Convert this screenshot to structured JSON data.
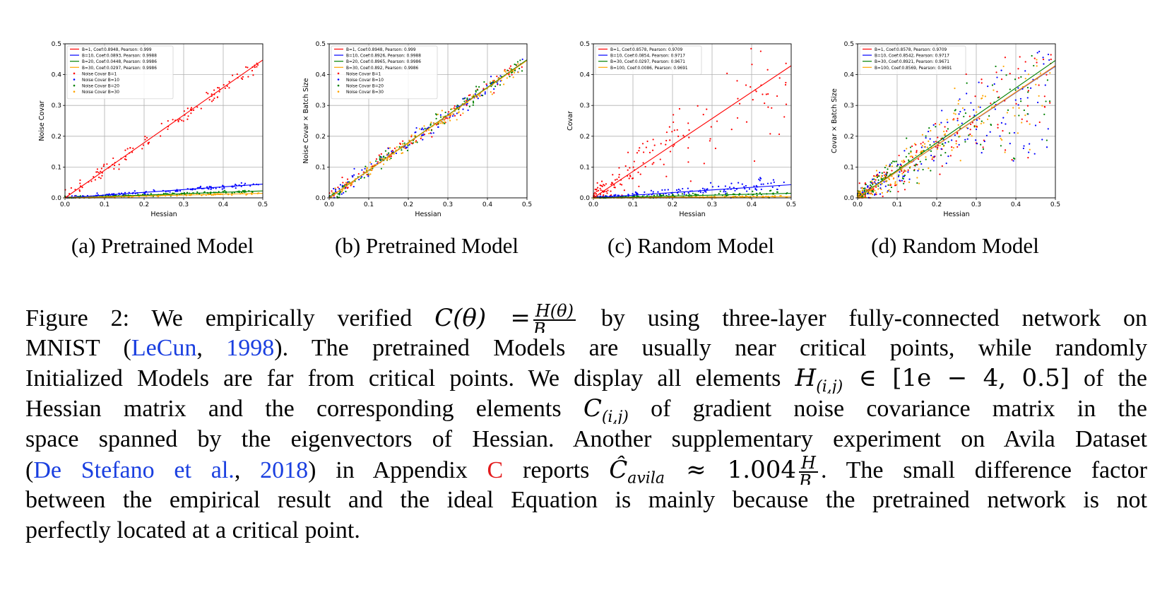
{
  "panels": [
    {
      "caption": "(a) Pretrained Model",
      "xlabel": "Hessian",
      "ylabel": "Noise Covar",
      "legend_lines": [
        {
          "label": "B=1, Coef:0.8948, Pearson: 0.999",
          "color": "#ff0000"
        },
        {
          "label": "B=10, Coef:0.0893, Pearson: 0.9988",
          "color": "#0000ff"
        },
        {
          "label": "B=20, Coef:0.0448, Pearson: 0.9986",
          "color": "#008000"
        },
        {
          "label": "B=30, Coef:0.0297, Pearson: 0.9986",
          "color": "#ffa500"
        }
      ],
      "legend_points": [
        {
          "label": "Noise Covar B=1",
          "color": "#ff0000"
        },
        {
          "label": "Noise Covar B=10",
          "color": "#0000ff"
        },
        {
          "label": "Noise Covar B=20",
          "color": "#008000"
        },
        {
          "label": "Noise Covar B=30",
          "color": "#ffa500"
        }
      ]
    },
    {
      "caption": "(b) Pretrained Model",
      "xlabel": "Hessian",
      "ylabel": "Noise Covar × Batch Size",
      "legend_lines": [
        {
          "label": "B=1, Coef:0.8948, Pearson: 0.999",
          "color": "#ff0000"
        },
        {
          "label": "B=10, Coef:0.8926, Pearson: 0.9988",
          "color": "#0000ff"
        },
        {
          "label": "B=20, Coef:0.8965, Pearson: 0.9986",
          "color": "#008000"
        },
        {
          "label": "B=30, Coef:0.892, Pearson: 0.9986",
          "color": "#ffa500"
        }
      ],
      "legend_points": [
        {
          "label": "Noise Covar B=1",
          "color": "#ff0000"
        },
        {
          "label": "Noise Covar B=10",
          "color": "#0000ff"
        },
        {
          "label": "Noise Covar B=20",
          "color": "#008000"
        },
        {
          "label": "Noise Covar B=30",
          "color": "#ffa500"
        }
      ]
    },
    {
      "caption": "(c) Random Model",
      "xlabel": "Hessian",
      "ylabel": "Covar",
      "legend_lines": [
        {
          "label": "B=1, Coef:0.8578, Pearson: 0.9709",
          "color": "#ff0000"
        },
        {
          "label": "B=10, Coef:0.0854, Pearson: 0.9717",
          "color": "#0000ff"
        },
        {
          "label": "B=30, Coef:0.0297, Pearson: 0.9671",
          "color": "#008000"
        },
        {
          "label": "B=100, Coef:0.0086, Pearson: 0.9691",
          "color": "#ffa500"
        }
      ],
      "legend_points": []
    },
    {
      "caption": "(d) Random Model",
      "xlabel": "Hessian",
      "ylabel": "Covar × Batch Size",
      "legend_lines": [
        {
          "label": "B=1, Coef:0.8578, Pearson: 0.9709",
          "color": "#ff0000"
        },
        {
          "label": "B=10, Coef:0.8542, Pearson: 0.9717",
          "color": "#0000ff"
        },
        {
          "label": "B=30, Coef:0.8921, Pearson: 0.9671",
          "color": "#008000"
        },
        {
          "label": "B=100, Coef:0.8569, Pearson: 0.9691",
          "color": "#ffa500"
        }
      ],
      "legend_points": []
    }
  ],
  "chart_data": [
    {
      "type": "scatter",
      "xlabel": "Hessian",
      "ylabel": "Noise Covar",
      "xlim": [
        0,
        0.5
      ],
      "ylim": [
        0,
        0.5
      ],
      "xticks": [
        "0.0",
        "0.1",
        "0.2",
        "0.3",
        "0.4",
        "0.5"
      ],
      "yticks": [
        "0.0",
        "0.1",
        "0.2",
        "0.3",
        "0.4",
        "0.5"
      ],
      "grid": true,
      "legend": "top-left",
      "series": [
        {
          "name": "B=1, Coef:0.8948, Pearson: 0.999",
          "slope": 0.8948,
          "color": "#ff0000",
          "noise": 0.012
        },
        {
          "name": "B=10, Coef:0.0893, Pearson: 0.9988",
          "slope": 0.0893,
          "color": "#0000ff",
          "noise": 0.003
        },
        {
          "name": "B=20, Coef:0.0448, Pearson: 0.9986",
          "slope": 0.0448,
          "color": "#008000",
          "noise": 0.002
        },
        {
          "name": "B=30, Coef:0.0297, Pearson: 0.9986",
          "slope": 0.0297,
          "color": "#ffa500",
          "noise": 0.0015
        }
      ]
    },
    {
      "type": "scatter",
      "xlabel": "Hessian",
      "ylabel": "Noise Covar × Batch Size",
      "xlim": [
        0,
        0.5
      ],
      "ylim": [
        0,
        0.5
      ],
      "xticks": [
        "0.0",
        "0.1",
        "0.2",
        "0.3",
        "0.4",
        "0.5"
      ],
      "yticks": [
        "0.0",
        "0.1",
        "0.2",
        "0.3",
        "0.4",
        "0.5"
      ],
      "grid": true,
      "legend": "top-left",
      "series": [
        {
          "name": "B=1, Coef:0.8948, Pearson: 0.999",
          "slope": 0.8948,
          "color": "#ff0000",
          "noise": 0.012
        },
        {
          "name": "B=10, Coef:0.8926, Pearson: 0.9988",
          "slope": 0.8926,
          "color": "#0000ff",
          "noise": 0.012
        },
        {
          "name": "B=20, Coef:0.8965, Pearson: 0.9986",
          "slope": 0.8965,
          "color": "#008000",
          "noise": 0.012
        },
        {
          "name": "B=30, Coef:0.892, Pearson: 0.9986",
          "slope": 0.892,
          "color": "#ffa500",
          "noise": 0.012
        }
      ]
    },
    {
      "type": "scatter",
      "xlabel": "Hessian",
      "ylabel": "Covar",
      "xlim": [
        0,
        0.5
      ],
      "ylim": [
        0,
        0.5
      ],
      "xticks": [
        "0.0",
        "0.1",
        "0.2",
        "0.3",
        "0.4",
        "0.5"
      ],
      "yticks": [
        "0.0",
        "0.1",
        "0.2",
        "0.3",
        "0.4",
        "0.5"
      ],
      "grid": true,
      "legend": "top-left",
      "series": [
        {
          "name": "B=1, Coef:0.8578, Pearson: 0.9709",
          "slope": 0.8578,
          "color": "#ff0000",
          "noise": 0.05
        },
        {
          "name": "B=10, Coef:0.0854, Pearson: 0.9717",
          "slope": 0.0854,
          "color": "#0000ff",
          "noise": 0.006
        },
        {
          "name": "B=30, Coef:0.0297, Pearson: 0.9671",
          "slope": 0.0297,
          "color": "#008000",
          "noise": 0.003
        },
        {
          "name": "B=100, Coef:0.0086, Pearson: 0.9691",
          "slope": 0.0086,
          "color": "#ffa500",
          "noise": 0.001
        }
      ]
    },
    {
      "type": "scatter",
      "xlabel": "Hessian",
      "ylabel": "Covar × Batch Size",
      "xlim": [
        0,
        0.5
      ],
      "ylim": [
        0,
        0.5
      ],
      "xticks": [
        "0.0",
        "0.1",
        "0.2",
        "0.3",
        "0.4",
        "0.5"
      ],
      "yticks": [
        "0.0",
        "0.1",
        "0.2",
        "0.3",
        "0.4",
        "0.5"
      ],
      "grid": true,
      "legend": "top-left",
      "series": [
        {
          "name": "B=1, Coef:0.8578, Pearson: 0.9709",
          "slope": 0.8578,
          "color": "#ff0000",
          "noise": 0.04
        },
        {
          "name": "B=10, Coef:0.8542, Pearson: 0.9717",
          "slope": 0.8542,
          "color": "#0000ff",
          "noise": 0.04
        },
        {
          "name": "B=30, Coef:0.8921, Pearson: 0.9671",
          "slope": 0.8921,
          "color": "#008000",
          "noise": 0.04
        },
        {
          "name": "B=100, Coef:0.8569, Pearson: 0.9691",
          "slope": 0.8569,
          "color": "#ffa500",
          "noise": 0.04
        }
      ]
    }
  ],
  "caption": {
    "l1_pre": "Figure 2: We empirically verified ",
    "l1_math_lhs": "C(θ) =",
    "l1_frac_num": "H(θ)",
    "l1_frac_den": "B",
    "l1_post": " by using three-layer fully-connected network on",
    "l2_pre": "MNIST (",
    "l2_cite1": "LeCun",
    "l2_comma": ", ",
    "l2_cite2": "1998",
    "l2_post": ").  The pretrained Models are usually near critical points, while randomly",
    "l3_pre": "Initialized Models are far from critical points. We display all elements ",
    "l3_math_H": "H",
    "l3_math_sub": "(i,j)",
    "l3_math_in": " ∈ [1e − 4, 0.5]",
    "l3_post": " of the",
    "l4_pre": "Hessian matrix and the corresponding elements ",
    "l4_math_C": "C",
    "l4_math_sub": "(i,j)",
    "l4_post": " of gradient noise covariance matrix in the",
    "l5": "space spanned by the eigenvectors of Hessian. Another supplementary experiment on Avila Dataset",
    "l6_open": "(",
    "l6_cite1": "De Stefano et al.",
    "l6_comma": ", ",
    "l6_cite2": "2018",
    "l6_mid": ") in Appendix ",
    "l6_app": "C",
    "l6_reports": " reports ",
    "l6_math_C": "Ĉ",
    "l6_math_sub": "avila",
    "l6_math_approx": " ≈ 1.004",
    "l6_frac_num": "H",
    "l6_frac_den": "B",
    "l6_post": ".  The small difference factor",
    "l7": "between the empirical result and the ideal Equation is mainly because the pretrained network is not",
    "l8": "perfectly located at a critical point."
  }
}
